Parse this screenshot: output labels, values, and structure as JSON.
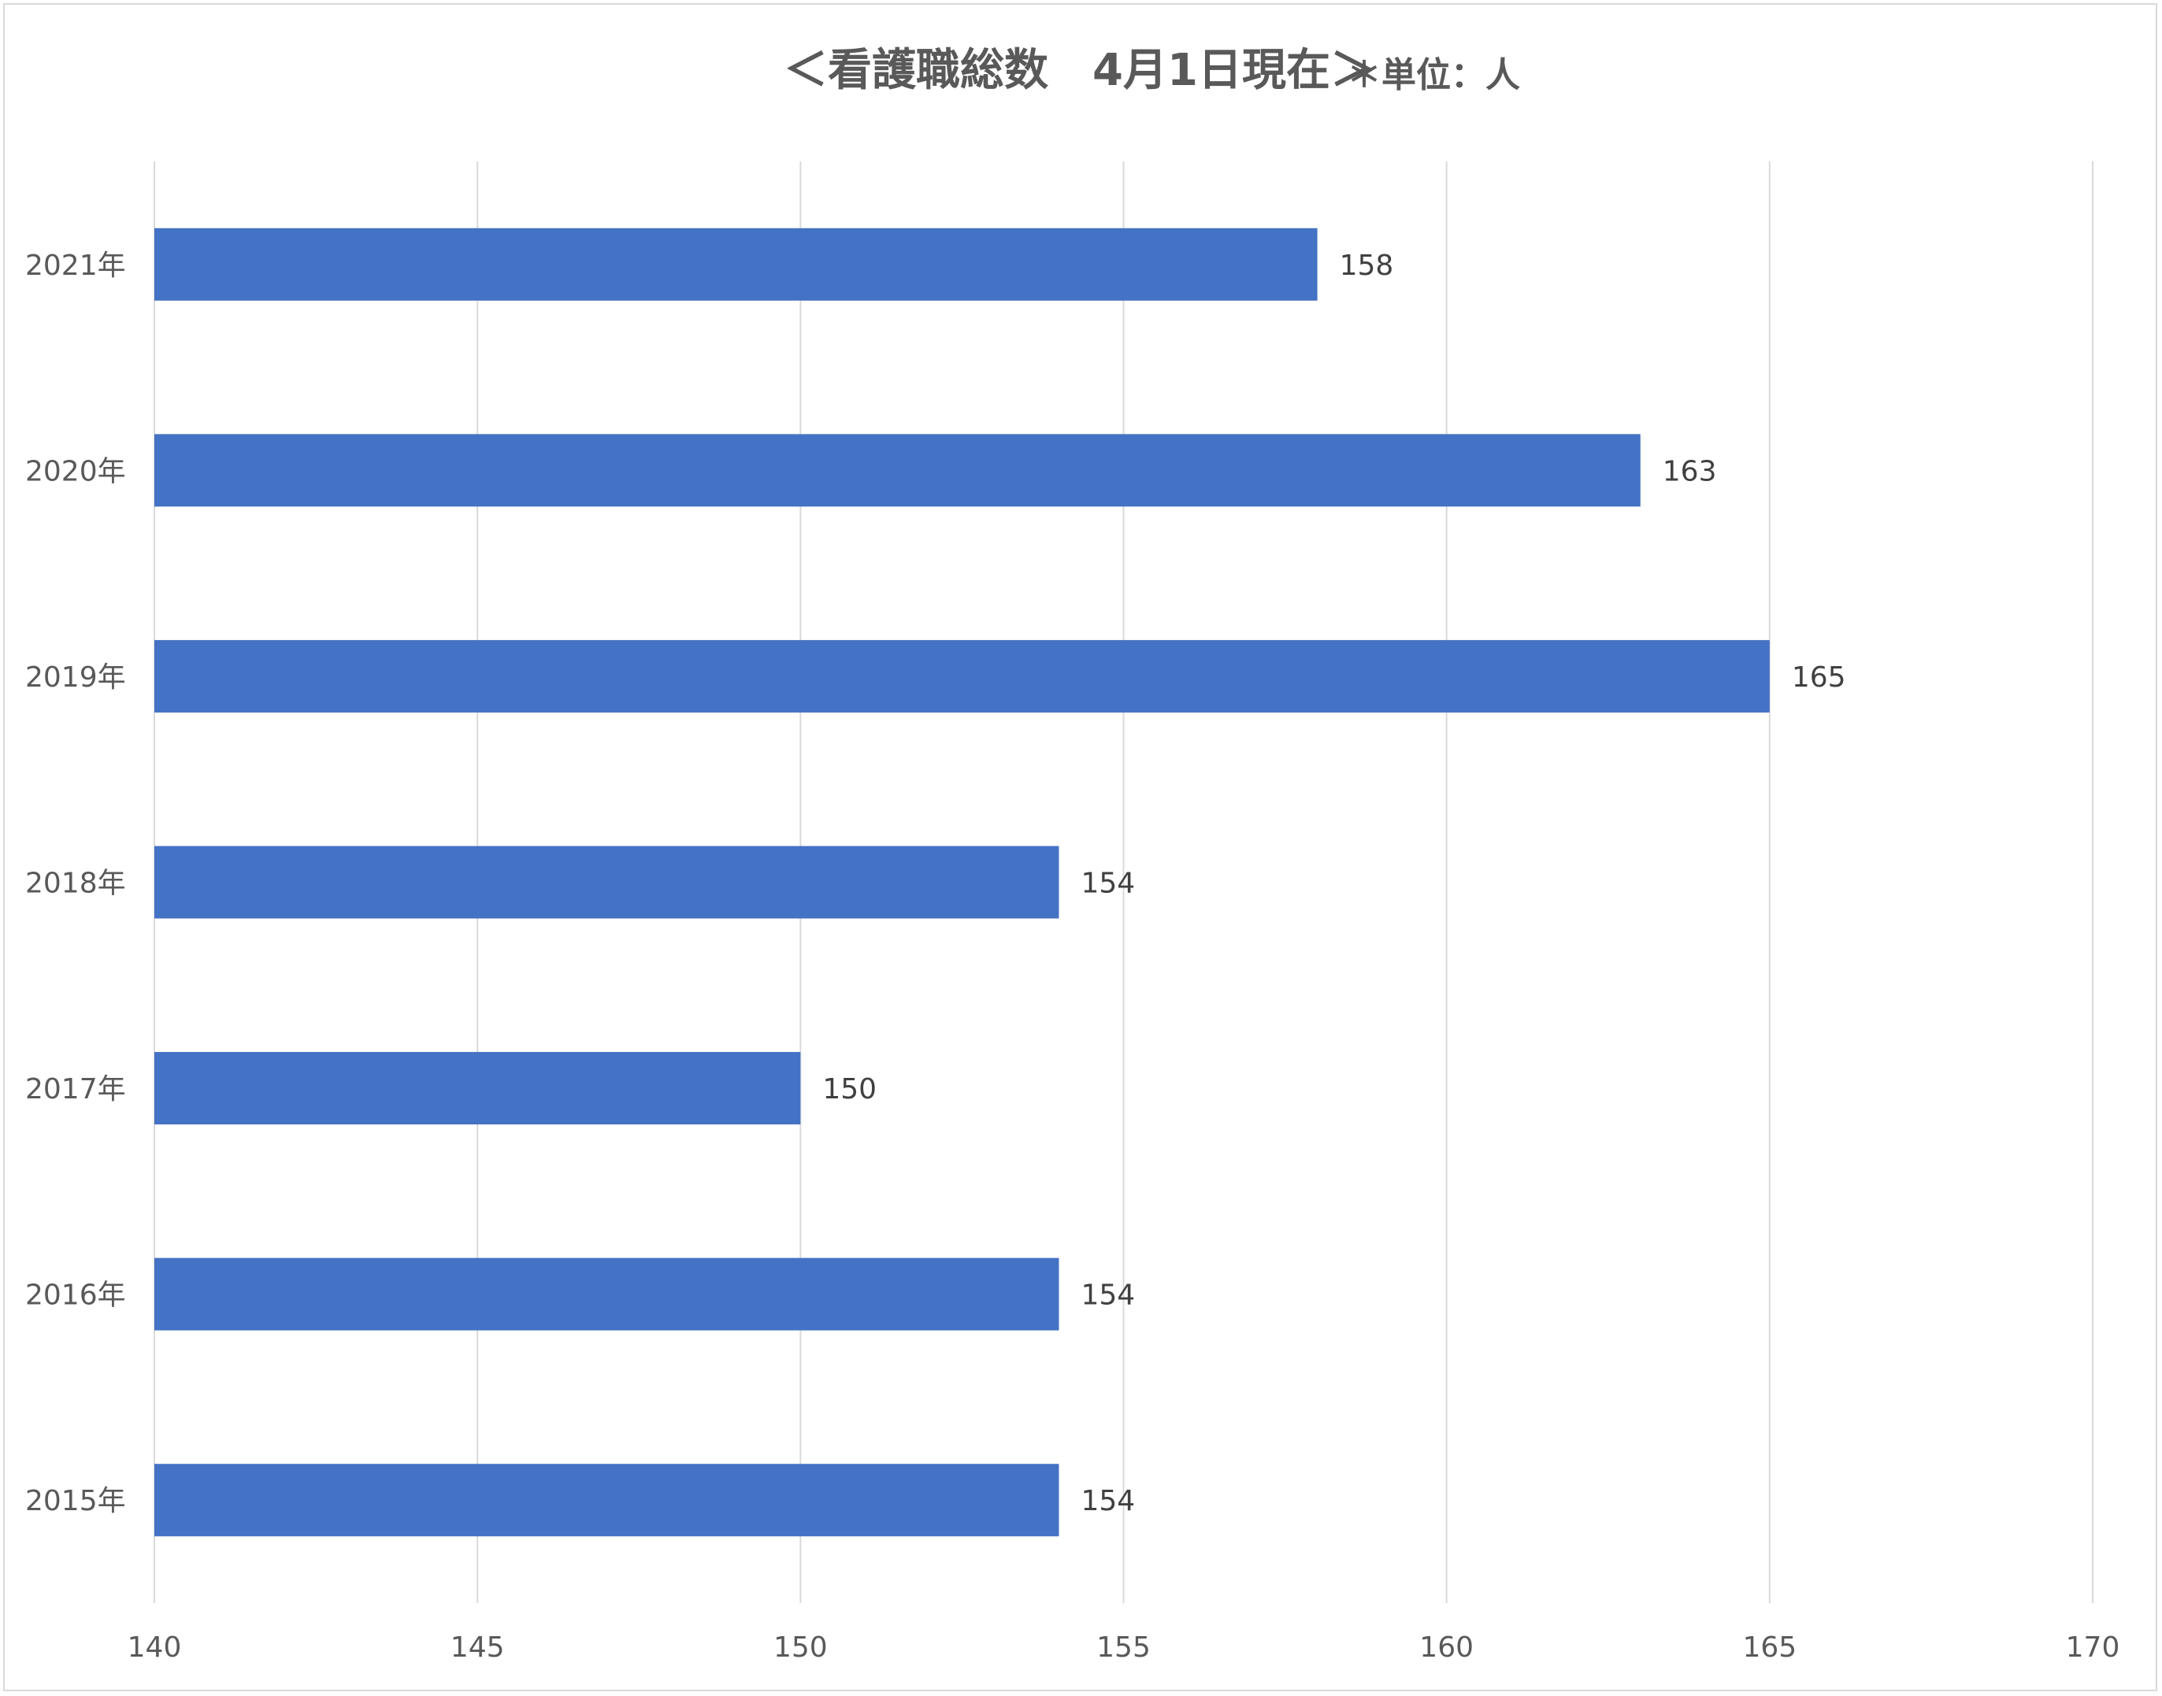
{
  "chart_data": {
    "type": "bar",
    "orientation": "horizontal",
    "title": "＜看護職総数　4月1日現在＞",
    "unit_note": "＊単位：人",
    "categories": [
      "2021年",
      "2020年",
      "2019年",
      "2018年",
      "2017年",
      "2016年",
      "2015年"
    ],
    "values": [
      158,
      163,
      165,
      154,
      150,
      154,
      154
    ],
    "xlim": [
      140,
      170
    ],
    "xticks": [
      140,
      145,
      150,
      155,
      160,
      165,
      170
    ],
    "grid": true,
    "legend": "none",
    "bar_color": "#4472c4"
  }
}
